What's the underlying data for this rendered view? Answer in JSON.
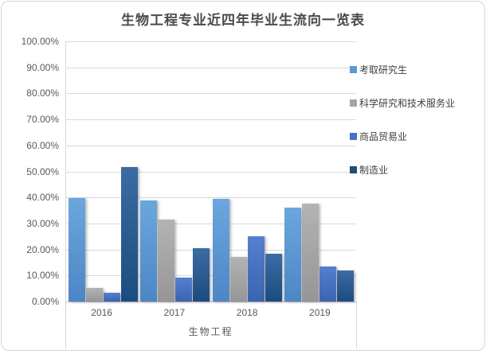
{
  "chart_data": {
    "type": "bar",
    "title": "生物工程专业近四年毕业生流向一览表",
    "categories": [
      "2016",
      "2017",
      "2018",
      "2019"
    ],
    "series": [
      {
        "name": "考取研究生",
        "color": "#5B9BD5",
        "color_top": "#6BA7DE",
        "color_bottom": "#4C86C6",
        "values": [
          39.7,
          38.7,
          39.4,
          36.1
        ]
      },
      {
        "name": "科学研究和技术服务业",
        "color": "#A5A5A5",
        "color_top": "#B3B3B3",
        "color_bottom": "#969696",
        "values": [
          5.2,
          31.5,
          17.0,
          37.7
        ]
      },
      {
        "name": "商品贸易业",
        "color": "#4472C4",
        "color_top": "#5580CE",
        "color_bottom": "#3A64AE",
        "values": [
          3.4,
          9.1,
          25.0,
          13.4
        ]
      },
      {
        "name": "制造业",
        "color": "#1F4E79",
        "color_top": "#3C6CA4",
        "color_bottom": "#1C4B7E",
        "values": [
          51.7,
          20.5,
          18.3,
          12.0
        ]
      }
    ],
    "xlabel": "生物工程",
    "ylabel": "",
    "ylim": [
      0,
      100
    ],
    "ytick_labels": [
      "100.00%",
      "90.00%",
      "80.00%",
      "70.00%",
      "60.00%",
      "50.00%",
      "40.00%",
      "30.00%",
      "20.00%",
      "10.00%",
      "0.00%"
    ],
    "grid": true,
    "legend_position": "right"
  },
  "colors": {
    "gridline": "#D9D9D9",
    "axis_line": "#BFBFBF",
    "tick_text": "#595959",
    "title_text": "#4A4A4A",
    "legend_text": "#404040",
    "frame_border": "#D7D7D7",
    "background": "#FFFFFF"
  }
}
